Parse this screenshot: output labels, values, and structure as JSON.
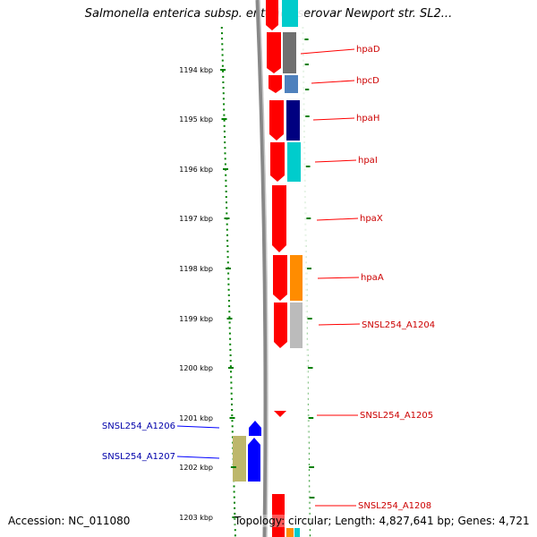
{
  "title": "Salmonella enterica subsp. enterica serovar Newport str. SL2...",
  "footer": {
    "accession": "Accession: NC_011080",
    "summary": "Topology: circular; Length: 4,827,641 bp; Genes: 4,721"
  },
  "axis": {
    "ticks": [
      "1194 kbp",
      "1195 kbp",
      "1196 kbp",
      "1197 kbp",
      "1198 kbp",
      "1199 kbp",
      "1200 kbp",
      "1201 kbp",
      "1202 kbp",
      "1203 kbp"
    ]
  },
  "genes_right": [
    {
      "label": "hpaD",
      "color": "#ff0000"
    },
    {
      "label": "hpcD",
      "color": "#ff0000"
    },
    {
      "label": "hpaH",
      "color": "#ff0000"
    },
    {
      "label": "hpaI",
      "color": "#ff0000"
    },
    {
      "label": "hpaX",
      "color": "#ff0000"
    },
    {
      "label": "hpaA",
      "color": "#ff0000"
    },
    {
      "label": "SNSL254_A1204",
      "color": "#ff0000"
    },
    {
      "label": "SNSL254_A1205",
      "color": "#ff0000"
    },
    {
      "label": "SNSL254_A1208",
      "color": "#ff0000"
    }
  ],
  "genes_left": [
    {
      "label": "SNSL254_A1206",
      "color": "#0000ff"
    },
    {
      "label": "SNSL254_A1207",
      "color": "#0000ff"
    }
  ],
  "colors": {
    "forward_strand": "#ff0000",
    "reverse_strand": "#0000ff",
    "backbone": "#808080",
    "tick_green": "#008000",
    "cog_grey": "#707070",
    "cog_steelblue": "#4f81bd",
    "cog_navy": "#000080",
    "cog_cyan": "#00cccc",
    "cog_orange": "#ff8c00",
    "cog_silver": "#bbbbbb",
    "cog_khaki": "#bdb76b"
  }
}
